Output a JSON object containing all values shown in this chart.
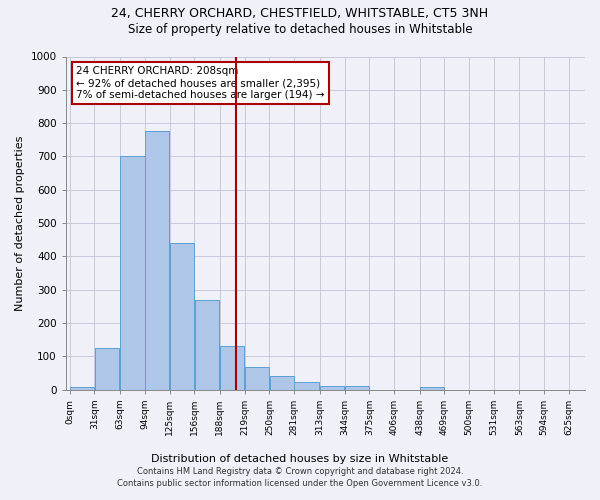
{
  "title1": "24, CHERRY ORCHARD, CHESTFIELD, WHITSTABLE, CT5 3NH",
  "title2": "Size of property relative to detached houses in Whitstable",
  "xlabel": "Distribution of detached houses by size in Whitstable",
  "ylabel": "Number of detached properties",
  "bar_left_edges": [
    0,
    31,
    63,
    94,
    125,
    156,
    188,
    219,
    250,
    281,
    313,
    344,
    375,
    406,
    438,
    469,
    500,
    531,
    563,
    594
  ],
  "bar_heights": [
    8,
    125,
    700,
    775,
    440,
    270,
    130,
    68,
    40,
    22,
    12,
    12,
    0,
    0,
    8,
    0,
    0,
    0,
    0,
    0
  ],
  "bin_width": 31,
  "bar_color": "#aec6e8",
  "bar_edge_color": "#5a9fd4",
  "vline_x": 208,
  "vline_color": "#aa0000",
  "annotation_line1": "24 CHERRY ORCHARD: 208sqm",
  "annotation_line2": "← 92% of detached houses are smaller (2,395)",
  "annotation_line3": "7% of semi-detached houses are larger (194) →",
  "annotation_box_color": "#ffffff",
  "annotation_box_edge": "#aa0000",
  "ylim": [
    0,
    1000
  ],
  "tick_labels": [
    "0sqm",
    "31sqm",
    "63sqm",
    "94sqm",
    "125sqm",
    "156sqm",
    "188sqm",
    "219sqm",
    "250sqm",
    "281sqm",
    "313sqm",
    "344sqm",
    "375sqm",
    "406sqm",
    "438sqm",
    "469sqm",
    "500sqm",
    "531sqm",
    "563sqm",
    "594sqm",
    "625sqm"
  ],
  "tick_positions": [
    0,
    31,
    63,
    94,
    125,
    156,
    188,
    219,
    250,
    281,
    313,
    344,
    375,
    406,
    438,
    469,
    500,
    531,
    563,
    594,
    625
  ],
  "footer1": "Contains HM Land Registry data © Crown copyright and database right 2024.",
  "footer2": "Contains public sector information licensed under the Open Government Licence v3.0.",
  "bg_color": "#f0f0f8",
  "grid_color": "#c8c8dc"
}
